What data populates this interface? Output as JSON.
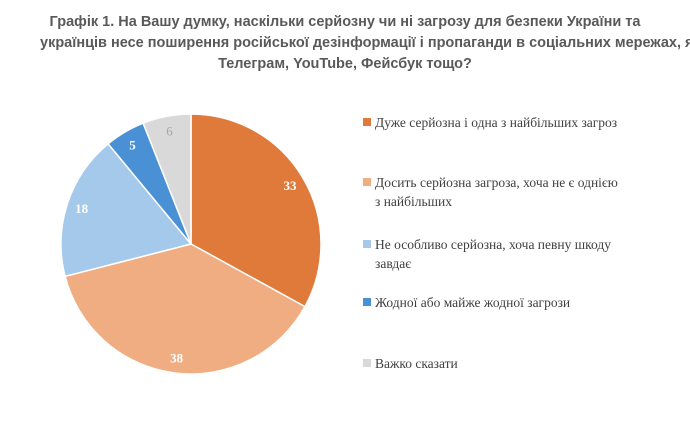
{
  "title_lines": [
    "Графік 1. На Вашу думку, наскільки серйозну чи ні загрозу для безпеки України та",
    "українців несе поширення російської дезінформації і пропаганди в соціальних мережах, як",
    "Телеграм, YouTube, Фейсбук тощо?"
  ],
  "chart_data": {
    "type": "pie",
    "title": "Графік 1. На Вашу думку, наскільки серйозну чи ні загрозу для безпеки України та українців несе поширення російської дезінформації і пропаганди в соціальних мережах, як Телеграм, YouTube, Фейсбук тощо?",
    "values": [
      33,
      38,
      18,
      5,
      6
    ],
    "colors": [
      "#E07A3A",
      "#F0AD82",
      "#A4C9EB",
      "#4A90D4",
      "#D9D9D9"
    ],
    "legend_position": "right",
    "legend": [
      {
        "lines": [
          "Дуже серйозна і одна з найбільших загроз"
        ]
      },
      {
        "lines": [
          "Досить серйозна загроза, хоча не є однією",
          "з найбільших"
        ]
      },
      {
        "lines": [
          "Не особливо серйозна, хоча певну шкоду",
          "завдає"
        ]
      },
      {
        "lines": [
          "Жодної або майже жодної загрози"
        ]
      },
      {
        "lines": [
          "Важко сказати"
        ]
      }
    ]
  }
}
